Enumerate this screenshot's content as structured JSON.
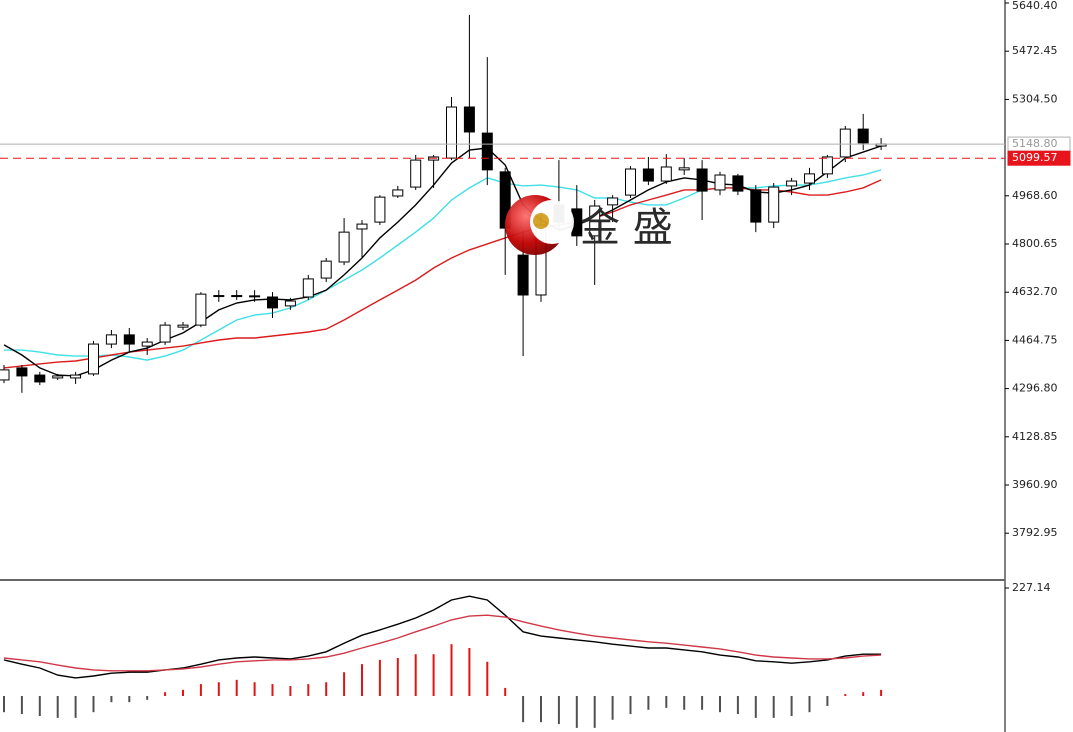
{
  "chart_data": [
    {
      "type": "candlestick",
      "ylim": [
        3629.9,
        5650.85
      ],
      "yticks": [
        {
          "value": 5640.4,
          "label": "5640.40"
        },
        5472.45,
        {
          "value": 5304.5,
          "label": "5304.50"
        },
        {
          "value": 4968.6,
          "label": "4968.60"
        },
        4800.65,
        {
          "value": 4632.7,
          "label": "4632.70"
        },
        4464.75,
        {
          "value": 4296.8,
          "label": "4296.80"
        },
        4128.85,
        {
          "value": 3960.9,
          "label": "3960.90"
        },
        3792.95
      ],
      "up_color": "#ffffff",
      "down_color": "#000000",
      "open": [
        4327,
        4369,
        4344,
        4334,
        4334,
        4348,
        4452,
        4484,
        4445,
        4459,
        4511,
        4518,
        4620,
        4619,
        4620,
        4616,
        4585,
        4616,
        4682,
        4738,
        4853,
        4877,
        4968,
        4999,
        5093,
        5100,
        5278,
        5187,
        5052,
        4762,
        4623,
        4937,
        4923,
        4829,
        4937,
        4971,
        5062,
        5020,
        5059,
        5062,
        4989,
        5038,
        4989,
        4877,
        5003,
        5013,
        5045,
        5104,
        5201,
        5142
      ],
      "high": [
        4379,
        4379,
        4355,
        4348,
        4355,
        4463,
        4501,
        4508,
        4473,
        4529,
        4529,
        4633,
        4640,
        4640,
        4640,
        4633,
        4613,
        4693,
        4752,
        4891,
        4884,
        4971,
        5003,
        5111,
        5111,
        5313,
        5599,
        5452,
        5066,
        4849,
        4919,
        5093,
        5006,
        4954,
        4971,
        5072,
        5104,
        5114,
        5100,
        5093,
        5052,
        5045,
        5006,
        5013,
        5031,
        5066,
        5111,
        5212,
        5254,
        5170
      ],
      "low": [
        4316,
        4282,
        4309,
        4327,
        4313,
        4341,
        4438,
        4424,
        4414,
        4449,
        4501,
        4511,
        4599,
        4606,
        4599,
        4543,
        4571,
        4606,
        4668,
        4727,
        4752,
        4867,
        4961,
        4989,
        4996,
        5093,
        5100,
        5006,
        4693,
        4410,
        4599,
        4849,
        4794,
        4658,
        4877,
        4961,
        5006,
        5010,
        5041,
        4884,
        4971,
        4971,
        4842,
        4856,
        4971,
        4989,
        5031,
        5086,
        5128,
        5128
      ],
      "close": [
        4362,
        4341,
        4320,
        4341,
        4344,
        4452,
        4484,
        4452,
        4459,
        4518,
        4518,
        4626,
        4621,
        4621,
        4619,
        4578,
        4602,
        4679,
        4741,
        4842,
        4870,
        4964,
        4989,
        5093,
        5104,
        5278,
        5191,
        5059,
        4856,
        4623,
        4867,
        4877,
        4829,
        4933,
        4961,
        5062,
        5020,
        5069,
        5066,
        4985,
        5041,
        4985,
        4877,
        4999,
        5020,
        5045,
        5104,
        5201,
        5153,
        5148.8
      ],
      "lines": [
        {
          "color": "#40e0e8",
          "values": [
            4431,
            4431,
            4424,
            4414,
            4410,
            4410,
            4414,
            4407,
            4396,
            4410,
            4431,
            4466,
            4501,
            4536,
            4553,
            4560,
            4578,
            4606,
            4640,
            4675,
            4710,
            4752,
            4797,
            4842,
            4891,
            4954,
            4996,
            5031,
            5013,
            5003,
            5006,
            4999,
            4989,
            4961,
            4961,
            4947,
            4937,
            4937,
            4961,
            4989,
            4996,
            4996,
            4996,
            5003,
            5006,
            5006,
            5017,
            5031,
            5041,
            5059
          ]
        },
        {
          "color": "#dc1c1c",
          "values": [
            4369,
            4376,
            4383,
            4389,
            4393,
            4403,
            4414,
            4424,
            4431,
            4438,
            4445,
            4456,
            4466,
            4473,
            4473,
            4480,
            4487,
            4494,
            4504,
            4536,
            4571,
            4606,
            4640,
            4675,
            4717,
            4752,
            4780,
            4801,
            4822,
            4842,
            4856,
            4867,
            4877,
            4891,
            4912,
            4937,
            4954,
            4971,
            4989,
            4989,
            4996,
            4996,
            4989,
            4989,
            4982,
            4971,
            4971,
            4982,
            4996,
            5024
          ]
        },
        {
          "color": "#000000",
          "values": [
            4449,
            4414,
            4369,
            4344,
            4341,
            4362,
            4396,
            4424,
            4438,
            4466,
            4491,
            4529,
            4571,
            4595,
            4606,
            4609,
            4606,
            4616,
            4640,
            4693,
            4752,
            4822,
            4877,
            4937,
            5006,
            5083,
            5128,
            5135,
            5076,
            4937,
            4884,
            4849,
            4867,
            4891,
            4919,
            4954,
            4989,
            5017,
            5031,
            5024,
            5010,
            5006,
            4982,
            4978,
            4989,
            5006,
            5052,
            5100,
            5121,
            5142
          ]
        }
      ],
      "price_lines": [
        {
          "value": 5148.8,
          "label": "5148.80",
          "color": "#b0b0b0"
        },
        {
          "value": 5099.57,
          "label": "5099.57",
          "color": "#e8141c"
        }
      ],
      "watermark": "金 盛"
    },
    {
      "type": "macd",
      "ylim": [
        -75.7,
        244
      ],
      "yticks": [
        227.14
      ],
      "histogram": {
        "up_color": "#e01414",
        "down_color": "#505050",
        "values": [
          -34,
          -38,
          -42,
          -46,
          -46,
          -34,
          -13,
          -13,
          -8,
          8,
          13,
          25,
          29,
          34,
          29,
          25,
          21,
          25,
          29,
          50,
          67,
          76,
          80,
          88,
          88,
          109,
          101,
          72,
          17,
          -55,
          -55,
          -59,
          -67,
          -67,
          -50,
          -38,
          -29,
          -25,
          -29,
          -29,
          -34,
          -38,
          -46,
          -46,
          -42,
          -34,
          -21,
          4,
          8,
          13
        ]
      },
      "lines": [
        {
          "color": "#000000",
          "values": [
            76,
            67,
            59,
            44,
            38,
            42,
            48,
            50,
            50,
            55,
            59,
            67,
            76,
            80,
            82,
            80,
            78,
            84,
            93,
            111,
            128,
            139,
            151,
            164,
            181,
            202,
            210,
            202,
            170,
            135,
            126,
            122,
            118,
            114,
            109,
            105,
            101,
            101,
            97,
            93,
            86,
            82,
            74,
            72,
            69,
            72,
            76,
            84,
            88,
            88
          ]
        },
        {
          "color": "#d03848",
          "values": [
            80,
            76,
            72,
            65,
            59,
            55,
            53,
            53,
            53,
            55,
            57,
            61,
            67,
            72,
            74,
            76,
            76,
            78,
            82,
            90,
            101,
            111,
            122,
            135,
            147,
            160,
            168,
            170,
            166,
            156,
            147,
            139,
            132,
            126,
            122,
            118,
            114,
            111,
            107,
            103,
            99,
            93,
            86,
            82,
            80,
            78,
            78,
            80,
            84,
            86
          ]
        }
      ]
    }
  ]
}
